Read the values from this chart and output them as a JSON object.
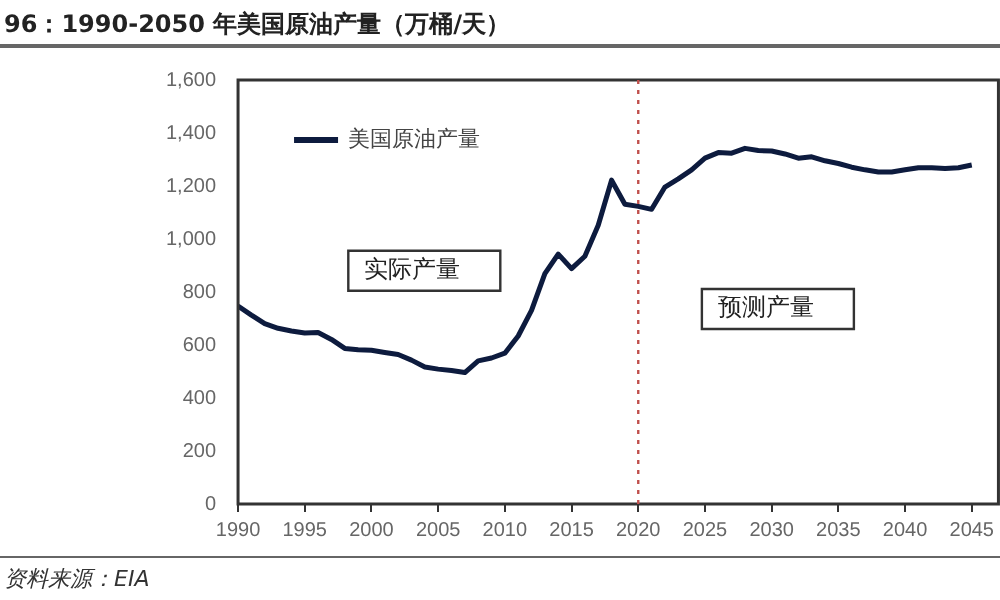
{
  "chart_data": {
    "type": "line",
    "title": "96：1990-2050 年美国原油产量（万桶/天）",
    "x": [
      1990,
      1991,
      1992,
      1993,
      1994,
      1995,
      1996,
      1997,
      1998,
      1999,
      2000,
      2001,
      2002,
      2003,
      2004,
      2005,
      2006,
      2007,
      2008,
      2009,
      2010,
      2011,
      2012,
      2013,
      2014,
      2015,
      2016,
      2017,
      2018,
      2019,
      2020,
      2021,
      2022,
      2023,
      2024,
      2025,
      2026,
      2027,
      2028,
      2029,
      2030,
      2031,
      2032,
      2033,
      2034,
      2035,
      2036,
      2037,
      2038,
      2039,
      2040,
      2041,
      2042,
      2043,
      2044,
      2045
    ],
    "series": [
      {
        "name": "美国原油产量",
        "color": "#0d1b3e",
        "values": [
          747,
          713,
          681,
          663,
          653,
          645,
          647,
          621,
          587,
          582,
          580,
          572,
          564,
          543,
          517,
          509,
          504,
          496,
          540,
          551,
          569,
          634,
          731,
          869,
          943,
          888,
          935,
          1052,
          1222,
          1131,
          1123,
          1112,
          1196,
          1227,
          1261,
          1305,
          1326,
          1324,
          1342,
          1334,
          1332,
          1321,
          1305,
          1310,
          1295,
          1285,
          1271,
          1261,
          1253,
          1253,
          1261,
          1269,
          1269,
          1266,
          1269,
          1279
        ]
      }
    ],
    "xlim": [
      1990,
      2047
    ],
    "xticks": [
      1990,
      1995,
      2000,
      2005,
      2010,
      2015,
      2020,
      2025,
      2030,
      2035,
      2040,
      2045
    ],
    "ylim": [
      0,
      1600
    ],
    "yticks": [
      0,
      {
        "value": 200,
        "label": "200"
      },
      {
        "value": 400,
        "label": "400"
      },
      {
        "value": 600,
        "label": "600"
      },
      {
        "value": 800,
        "label": "800"
      },
      {
        "value": 1000,
        "label": "1,000"
      },
      {
        "value": 1200,
        "label": "1,200"
      },
      {
        "value": 1400,
        "label": "1,400"
      },
      {
        "value": 1600,
        "label": "1,600"
      }
    ],
    "ref_lines": [
      {
        "axis": "x",
        "value": 2020,
        "color": "#c0504d",
        "line_style": "dotted"
      }
    ],
    "annotations": [
      "实际产量",
      "预测产量",
      "资料来源：EIA"
    ],
    "legend": "top left",
    "grid": false,
    "marker": "none",
    "line_style": "solid"
  }
}
